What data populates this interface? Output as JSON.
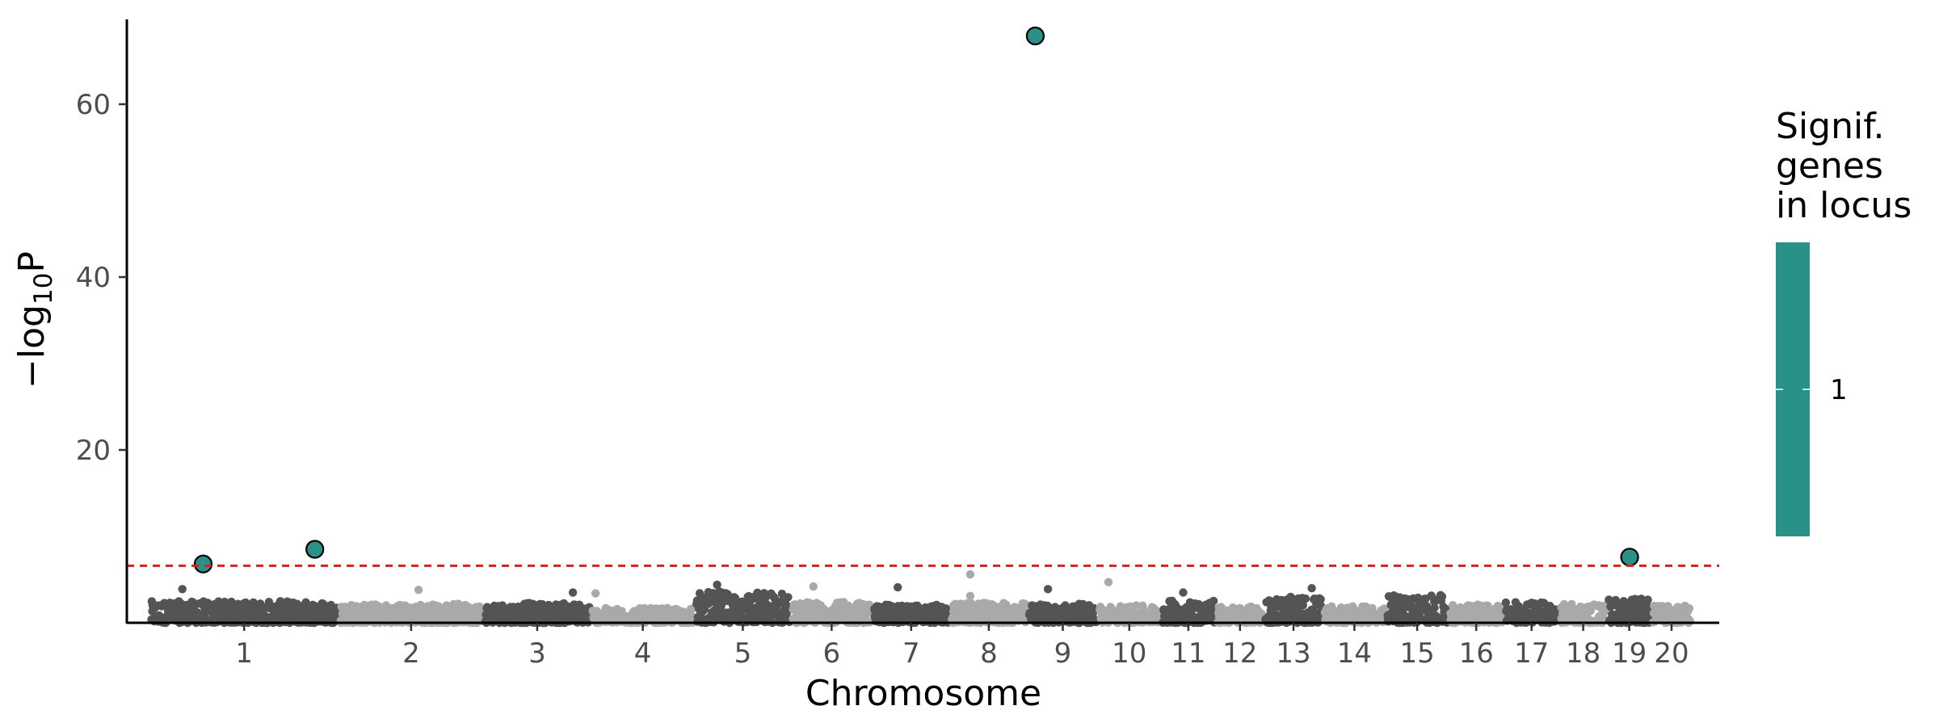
{
  "chart_data": {
    "type": "scatter",
    "xlabel": "Chromosome",
    "ylabel_parts": [
      "−log",
      "10",
      "P"
    ],
    "y_ticks": [
      20,
      40,
      60
    ],
    "ylim": [
      0,
      70
    ],
    "threshold": 6.6,
    "threshold_color": "#e41a1c",
    "chromosome_colors": [
      "#545454",
      "#a9a9a9"
    ],
    "highlight_color": "#2a9188",
    "chromosomes": [
      {
        "label": "1",
        "length": 250
      },
      {
        "label": "2",
        "length": 190
      },
      {
        "label": "3",
        "length": 140
      },
      {
        "label": "4",
        "length": 135
      },
      {
        "label": "5",
        "length": 125
      },
      {
        "label": "6",
        "length": 105
      },
      {
        "label": "7",
        "length": 100
      },
      {
        "label": "8",
        "length": 100
      },
      {
        "label": "9",
        "length": 90
      },
      {
        "label": "10",
        "length": 80
      },
      {
        "label": "11",
        "length": 70
      },
      {
        "label": "12",
        "length": 60
      },
      {
        "label": "13",
        "length": 75
      },
      {
        "label": "14",
        "length": 80
      },
      {
        "label": "15",
        "length": 80
      },
      {
        "label": "16",
        "length": 70
      },
      {
        "label": "17",
        "length": 70
      },
      {
        "label": "18",
        "length": 60
      },
      {
        "label": "19",
        "length": 55
      },
      {
        "label": "20",
        "length": 50
      }
    ],
    "peak_heights": [
      2.5,
      2.2,
      2.3,
      1.7,
      3.6,
      2.4,
      2.1,
      2.3,
      2.2,
      2.0,
      2.6,
      1.9,
      3.0,
      1.9,
      3.2,
      2.1,
      2.4,
      2.2,
      2.8,
      2.0
    ],
    "outliers": [
      {
        "chr": "1",
        "pos": 42,
        "y": 3.9
      },
      {
        "chr": "2",
        "pos": 105,
        "y": 3.8
      },
      {
        "chr": "3",
        "pos": 118,
        "y": 3.5
      },
      {
        "chr": "4",
        "pos": 4,
        "y": 3.4
      },
      {
        "chr": "5",
        "pos": 28,
        "y": 4.4
      },
      {
        "chr": "6",
        "pos": 28,
        "y": 4.2
      },
      {
        "chr": "7",
        "pos": 32,
        "y": 4.1
      },
      {
        "chr": "8",
        "pos": 25,
        "y": 5.6
      },
      {
        "chr": "8",
        "pos": 25,
        "y": 3.1
      },
      {
        "chr": "9",
        "pos": 25,
        "y": 3.9
      },
      {
        "chr": "10",
        "pos": 12,
        "y": 4.7
      },
      {
        "chr": "11",
        "pos": 28,
        "y": 3.5
      },
      {
        "chr": "13",
        "pos": 62,
        "y": 4.0
      }
    ],
    "significant_hits": [
      {
        "chr": "1",
        "pos": 70,
        "y": 6.8,
        "genes": 1
      },
      {
        "chr": "1",
        "pos": 220,
        "y": 8.5,
        "genes": 1
      },
      {
        "chr": "9",
        "pos": 8,
        "y": 67.9,
        "genes": 1
      },
      {
        "chr": "19",
        "pos": 28,
        "y": 7.6,
        "genes": 1
      }
    ],
    "legend": {
      "title_lines": [
        "Signif.",
        "genes",
        "in locus"
      ],
      "labels": [
        "1"
      ],
      "color": "#2a9188"
    }
  }
}
